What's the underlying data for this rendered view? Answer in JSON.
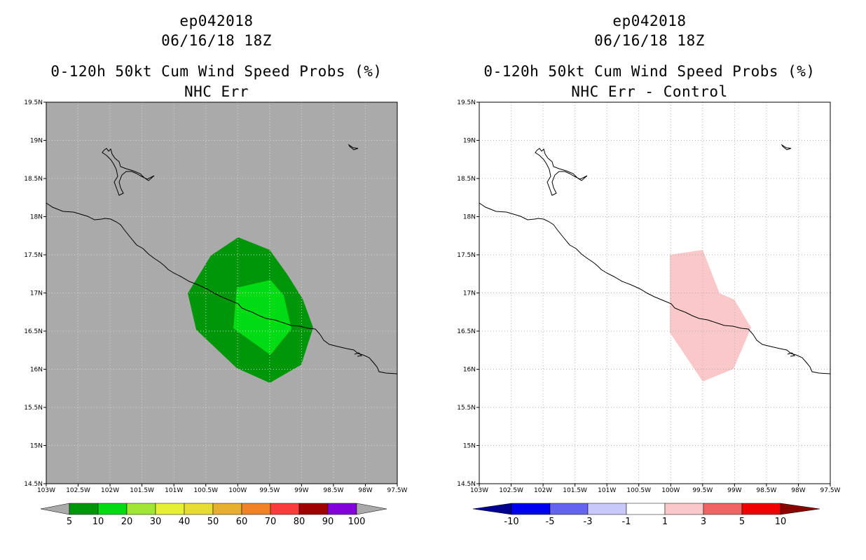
{
  "panels": [
    {
      "id": "left",
      "title_line1": "ep042018",
      "title_line2": "06/16/18 18Z",
      "title_line3": "0-120h 50kt Cum Wind Speed Probs (%)",
      "title_line4": "NHC Err",
      "background": "#aaaaaa",
      "colorbar_labels": [
        "5",
        "10",
        "20",
        "30",
        "40",
        "50",
        "60",
        "70",
        "80",
        "90",
        "100"
      ],
      "colorbar_colors": [
        "#00960a",
        "#00dc14",
        "#a0e632",
        "#e6f032",
        "#e6dc32",
        "#e6af2d",
        "#f08228",
        "#fa3c3c",
        "#a00000",
        "#8200dc"
      ],
      "fill_colors": {
        "p5_10": "#00960a",
        "p10_20": "#00dc14"
      }
    },
    {
      "id": "right",
      "title_line1": "ep042018",
      "title_line2": "06/16/18 18Z",
      "title_line3": "0-120h 50kt Cum Wind Speed Probs (%)",
      "title_line4": "NHC Err - Control",
      "background": "#ffffff",
      "colorbar_labels": [
        "-10",
        "-5",
        "-3",
        "-1",
        "1",
        "3",
        "5",
        "10"
      ],
      "colorbar_colors": [
        "#00008c",
        "#0000f0",
        "#6464f0",
        "#c8c8fa",
        "#ffffff",
        "#fac8c8",
        "#f06464",
        "#f00000",
        "#8c0000"
      ],
      "fill_colors": {
        "p1_3": "#fac8c8"
      }
    }
  ],
  "axes": {
    "lon_labels": [
      "103W",
      "102.5W",
      "102W",
      "101.5W",
      "101W",
      "100.5W",
      "100W",
      "99.5W",
      "99W",
      "98.5W",
      "98W",
      "97.5W"
    ],
    "lat_labels": [
      "14.5N",
      "15N",
      "15.5N",
      "16N",
      "16.5N",
      "17N",
      "17.5N",
      "18N",
      "18.5N",
      "19N",
      "19.5N"
    ],
    "lon_range": [
      -103,
      -97.5
    ],
    "lat_range": [
      14.5,
      19.5
    ]
  }
}
